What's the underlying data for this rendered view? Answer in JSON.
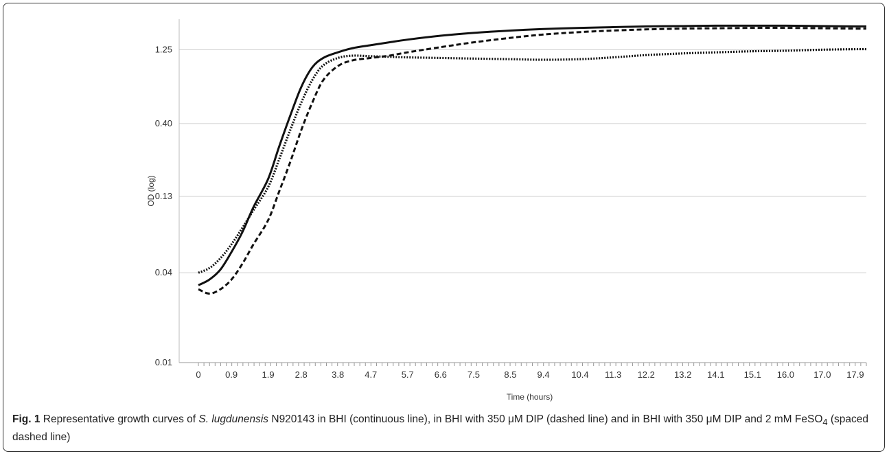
{
  "chart_data": {
    "type": "line",
    "xlabel": "Time (hours)",
    "ylabel": "OD  (log)",
    "y_scale": "log",
    "y_ticks": [
      "0.01",
      "0.04",
      "0.13",
      "0.40",
      "1.25"
    ],
    "y_tick_values": [
      0.01,
      0.04,
      0.13,
      0.4,
      1.25
    ],
    "x_ticks": [
      "0",
      "0.9",
      "1.9",
      "2.8",
      "3.8",
      "4.7",
      "5.7",
      "6.6",
      "7.5",
      "8.5",
      "9.4",
      "10.4",
      "11.3",
      "12.2",
      "13.2",
      "14.1",
      "15.1",
      "16.0",
      "17.0",
      "17.9"
    ],
    "x_tick_values": [
      0,
      0.9,
      1.9,
      2.8,
      3.8,
      4.7,
      5.7,
      6.6,
      7.5,
      8.5,
      9.4,
      10.4,
      11.3,
      12.2,
      13.2,
      14.1,
      15.1,
      16.0,
      17.0,
      17.9
    ],
    "xlim": [
      0,
      18.2
    ],
    "ylim": [
      0.01,
      2.0
    ],
    "grid": "horizontal",
    "series": [
      {
        "style": "continuous",
        "x": [
          0,
          0.3,
          0.6,
          0.9,
          1.2,
          1.5,
          1.9,
          2.2,
          2.5,
          2.8,
          3.1,
          3.4,
          3.8,
          4.2,
          4.7,
          5.2,
          5.7,
          6.6,
          7.5,
          8.5,
          9.4,
          10.4,
          11.3,
          12.2,
          13.2,
          14.1,
          15.1,
          16.0,
          17.0,
          17.9,
          18.2
        ],
        "values": [
          0.033,
          0.036,
          0.042,
          0.055,
          0.075,
          0.11,
          0.17,
          0.28,
          0.45,
          0.7,
          0.95,
          1.1,
          1.2,
          1.28,
          1.34,
          1.4,
          1.46,
          1.55,
          1.62,
          1.68,
          1.72,
          1.75,
          1.77,
          1.79,
          1.8,
          1.81,
          1.81,
          1.81,
          1.8,
          1.79,
          1.79
        ]
      },
      {
        "style": "dashed",
        "x": [
          0,
          0.3,
          0.6,
          0.9,
          1.2,
          1.5,
          1.9,
          2.2,
          2.5,
          2.8,
          3.1,
          3.4,
          3.8,
          4.2,
          4.7,
          5.2,
          5.7,
          6.6,
          7.5,
          8.5,
          9.4,
          10.4,
          11.3,
          12.2,
          13.2,
          14.1,
          15.1,
          16.0,
          17.0,
          17.9,
          18.2
        ],
        "values": [
          0.031,
          0.029,
          0.031,
          0.036,
          0.046,
          0.062,
          0.09,
          0.14,
          0.22,
          0.36,
          0.55,
          0.78,
          0.97,
          1.06,
          1.1,
          1.14,
          1.2,
          1.3,
          1.4,
          1.5,
          1.58,
          1.64,
          1.68,
          1.71,
          1.73,
          1.74,
          1.75,
          1.75,
          1.74,
          1.73,
          1.73
        ]
      },
      {
        "style": "spaced-dashed",
        "x": [
          0,
          0.3,
          0.6,
          0.9,
          1.2,
          1.5,
          1.9,
          2.2,
          2.5,
          2.8,
          3.1,
          3.4,
          3.8,
          4.2,
          4.7,
          5.2,
          5.7,
          6.6,
          7.5,
          8.5,
          9.4,
          10.4,
          11.3,
          12.2,
          13.2,
          14.1,
          15.1,
          16.0,
          17.0,
          17.9,
          18.2
        ],
        "values": [
          0.04,
          0.043,
          0.05,
          0.062,
          0.08,
          0.105,
          0.15,
          0.23,
          0.36,
          0.55,
          0.78,
          0.98,
          1.1,
          1.14,
          1.13,
          1.12,
          1.11,
          1.1,
          1.09,
          1.08,
          1.07,
          1.08,
          1.11,
          1.15,
          1.18,
          1.2,
          1.22,
          1.23,
          1.25,
          1.26,
          1.26
        ]
      }
    ]
  },
  "caption": {
    "fig_label": "Fig. 1",
    "text_1": " Representative growth curves of ",
    "organism": "S. lugdunensis",
    "text_2": " N920143 in BHI (continuous line), in BHI with 350 μM DIP (dashed line) and in BHI with 350 μM DIP and 2 mM FeSO",
    "subscript": "4",
    "text_3": " (spaced dashed line)"
  }
}
